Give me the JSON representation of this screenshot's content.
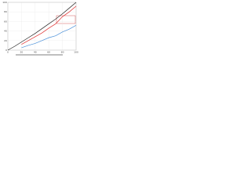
{
  "chart_data": {
    "type": "line",
    "x": [
      0,
      10,
      20,
      30,
      40,
      50,
      60,
      70,
      80,
      90,
      100
    ],
    "series": [
      {
        "color": "#222222",
        "values": [
          0,
          8,
          17,
          26,
          35,
          45,
          55,
          65,
          76,
          88,
          100
        ]
      },
      {
        "color": "#e03030",
        "values": [
          null,
          null,
          12,
          20,
          28,
          36,
          46,
          55,
          70,
          80,
          92
        ]
      },
      {
        "color": "#4a90d9",
        "values": [
          null,
          null,
          5,
          10,
          14,
          20,
          26,
          30,
          38,
          44,
          52
        ]
      }
    ],
    "xlim": [
      0,
      100
    ],
    "ylim": [
      0,
      100
    ],
    "xticks": [
      0,
      20,
      40,
      60,
      80,
      100
    ],
    "yticks": [
      0,
      20,
      40,
      60,
      80,
      100
    ],
    "grid": true
  }
}
